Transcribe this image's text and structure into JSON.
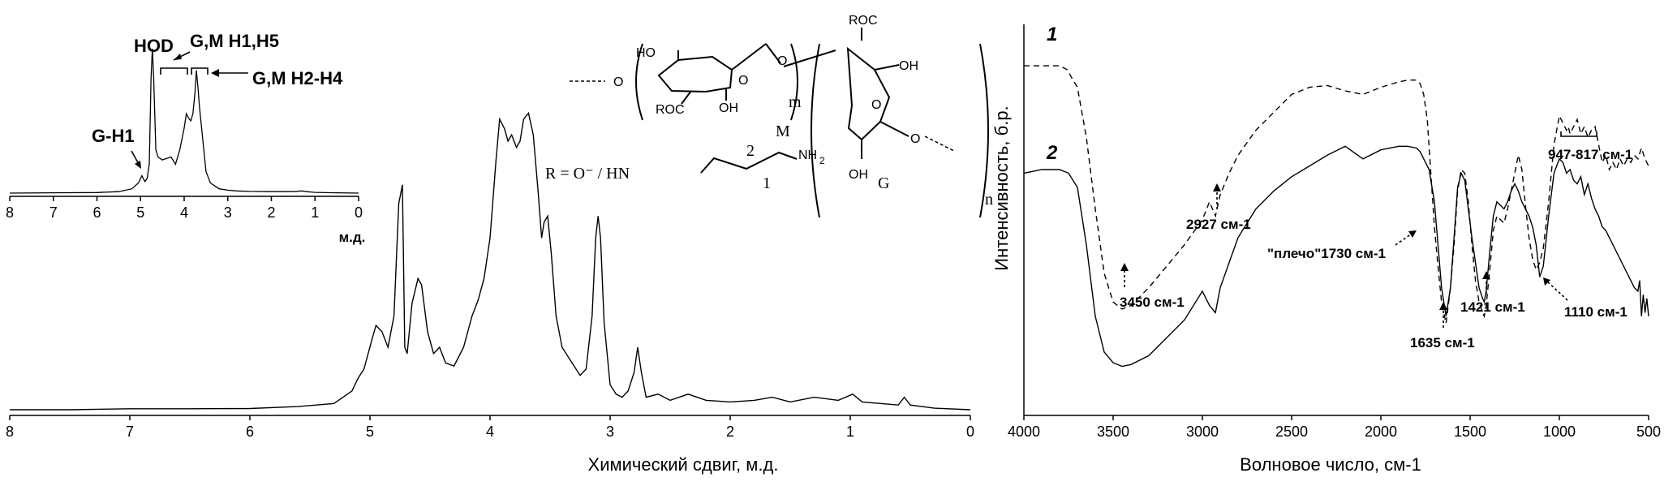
{
  "figure": {
    "chart_data": [
      {
        "type": "line",
        "id": "nmr_main",
        "xlabel": "Химический сдвиг, м.д.",
        "ylabel": "",
        "xlim": [
          8,
          0
        ],
        "x_reversed": true,
        "ticks": [
          "8",
          "7",
          "6",
          "5",
          "4",
          "3",
          "2",
          "1",
          "0"
        ],
        "series": [
          {
            "x": [
              8.0,
              7.5,
              7.0,
              6.5,
              6.0,
              5.6,
              5.3,
              5.15,
              5.1,
              5.05,
              4.98,
              4.95,
              4.9,
              4.85,
              4.8,
              4.76,
              4.73,
              4.71,
              4.69,
              4.65,
              4.6,
              4.57,
              4.52,
              4.47,
              4.42,
              4.37,
              4.3,
              4.22,
              4.15,
              4.1,
              4.05,
              4.0,
              3.95,
              3.92,
              3.88,
              3.85,
              3.82,
              3.78,
              3.75,
              3.72,
              3.68,
              3.64,
              3.6,
              3.57,
              3.55,
              3.52,
              3.49,
              3.45,
              3.4,
              3.35,
              3.3,
              3.25,
              3.2,
              3.15,
              3.12,
              3.1,
              3.08,
              3.05,
              3.0,
              2.95,
              2.9,
              2.85,
              2.8,
              2.77,
              2.74,
              2.7,
              2.6,
              2.5,
              2.35,
              2.2,
              2.0,
              1.8,
              1.65,
              1.5,
              1.3,
              1.1,
              0.98,
              0.9,
              0.75,
              0.6,
              0.55,
              0.5,
              0.3,
              0.0
            ],
            "y": [
              0.0,
              0.0,
              0.003,
              0.003,
              0.004,
              0.01,
              0.02,
              0.06,
              0.1,
              0.13,
              0.23,
              0.27,
              0.25,
              0.2,
              0.3,
              0.66,
              0.72,
              0.2,
              0.18,
              0.34,
              0.42,
              0.4,
              0.25,
              0.18,
              0.2,
              0.15,
              0.14,
              0.2,
              0.3,
              0.35,
              0.42,
              0.55,
              0.8,
              0.93,
              0.9,
              0.86,
              0.88,
              0.84,
              0.86,
              0.93,
              0.95,
              0.88,
              0.7,
              0.55,
              0.6,
              0.62,
              0.5,
              0.3,
              0.2,
              0.17,
              0.14,
              0.11,
              0.13,
              0.3,
              0.55,
              0.62,
              0.55,
              0.28,
              0.08,
              0.05,
              0.04,
              0.06,
              0.12,
              0.2,
              0.12,
              0.04,
              0.05,
              0.03,
              0.05,
              0.03,
              0.025,
              0.03,
              0.04,
              0.025,
              0.04,
              0.03,
              0.05,
              0.025,
              0.02,
              0.015,
              0.04,
              0.015,
              0.005,
              0.0
            ]
          }
        ]
      },
      {
        "type": "line",
        "id": "nmr_inset",
        "xlabel": "м.д.",
        "xlim": [
          8,
          0
        ],
        "x_reversed": true,
        "ticks": [
          "8",
          "7",
          "6",
          "5",
          "4",
          "3",
          "2",
          "1",
          "0"
        ],
        "series": [
          {
            "x": [
              8.0,
              7.0,
              6.0,
              5.5,
              5.2,
              5.05,
              4.97,
              4.9,
              4.85,
              4.8,
              4.76,
              4.73,
              4.7,
              4.65,
              4.6,
              4.5,
              4.4,
              4.3,
              4.2,
              4.1,
              4.0,
              3.95,
              3.9,
              3.85,
              3.8,
              3.75,
              3.72,
              3.68,
              3.65,
              3.6,
              3.55,
              3.5,
              3.4,
              3.3,
              3.2,
              3.0,
              2.8,
              2.5,
              2.0,
              1.5,
              1.3,
              1.2,
              1.0,
              0.5,
              0.0
            ],
            "y": [
              0.0,
              0.002,
              0.004,
              0.01,
              0.03,
              0.07,
              0.12,
              0.08,
              0.1,
              0.2,
              0.8,
              1.0,
              0.8,
              0.3,
              0.25,
              0.23,
              0.24,
              0.25,
              0.2,
              0.3,
              0.45,
              0.55,
              0.52,
              0.5,
              0.55,
              0.7,
              0.85,
              0.72,
              0.6,
              0.45,
              0.3,
              0.15,
              0.07,
              0.05,
              0.03,
              0.02,
              0.015,
              0.012,
              0.01,
              0.01,
              0.015,
              0.01,
              0.005,
              0.002,
              0.0
            ]
          }
        ],
        "annotations": [
          "HOD",
          "G,M H1,H5",
          "G,M H2-H4",
          "G-H1"
        ]
      },
      {
        "type": "line",
        "id": "ir",
        "xlabel": "Волновое число, см-1",
        "ylabel": "Интенсивность, б.р.",
        "xlim": [
          4000,
          500
        ],
        "x_reversed": true,
        "ticks": [
          "4000",
          "3500",
          "3000",
          "2500",
          "2000",
          "1500",
          "1000",
          "500"
        ],
        "series": [
          {
            "name": "1",
            "x": [
              4000,
              3900,
              3800,
              3760,
              3700,
              3650,
              3600,
              3550,
              3500,
              3450,
              3400,
              3300,
              3200,
              3100,
              3000,
              2960,
              2927,
              2900,
              2850,
              2800,
              2700,
              2600,
              2500,
              2400,
              2300,
              2200,
              2100,
              2000,
              1900,
              1850,
              1800,
              1780,
              1760,
              1740,
              1720,
              1700,
              1680,
              1660,
              1635,
              1610,
              1590,
              1570,
              1550,
              1530,
              1510,
              1490,
              1470,
              1450,
              1430,
              1421,
              1410,
              1390,
              1370,
              1350,
              1330,
              1310,
              1290,
              1270,
              1250,
              1230,
              1210,
              1190,
              1170,
              1150,
              1130,
              1110,
              1090,
              1060,
              1030,
              1000,
              980,
              960,
              950,
              940,
              920,
              900,
              880,
              860,
              840,
              820,
              800,
              780,
              760,
              740,
              720,
              700,
              680,
              660,
              640,
              620,
              600,
              580,
              560,
              540,
              520,
              500
            ],
            "y": [
              90,
              90,
              90,
              89,
              84,
              70,
              50,
              32,
              24,
              22,
              23,
              28,
              34,
              40,
              47,
              52,
              48,
              54,
              60,
              65,
              72,
              77,
              82,
              84,
              84.5,
              83,
              82,
              84,
              85.5,
              86,
              86,
              85,
              82,
              75,
              60,
              45,
              34,
              24,
              18,
              28,
              40,
              55,
              61,
              60,
              52,
              40,
              30,
              24,
              21,
              20,
              23,
              33,
              44,
              48,
              47,
              46,
              50,
              55,
              60,
              65,
              61,
              51,
              42,
              36,
              33,
              35,
              39,
              52,
              68,
              76,
              74,
              72,
              73,
              71,
              73,
              75,
              71,
              73,
              70,
              72,
              73,
              68,
              63,
              65,
              61,
              63,
              61,
              64,
              62,
              64,
              63,
              65,
              64,
              67,
              64,
              62
            ]
          },
          {
            "name": "2",
            "x": [
              4000,
              3900,
              3800,
              3750,
              3700,
              3650,
              3600,
              3550,
              3500,
              3450,
              3400,
              3300,
              3200,
              3100,
              3000,
              2960,
              2927,
              2900,
              2850,
              2800,
              2700,
              2600,
              2500,
              2400,
              2300,
              2200,
              2100,
              2000,
              1900,
              1850,
              1800,
              1780,
              1760,
              1740,
              1730,
              1720,
              1700,
              1680,
              1660,
              1635,
              1610,
              1590,
              1570,
              1550,
              1530,
              1510,
              1490,
              1470,
              1450,
              1430,
              1421,
              1410,
              1390,
              1370,
              1350,
              1330,
              1310,
              1290,
              1270,
              1250,
              1230,
              1210,
              1190,
              1170,
              1150,
              1130,
              1110,
              1090,
              1060,
              1030,
              1000,
              980,
              960,
              940,
              920,
              900,
              880,
              860,
              840,
              820,
              800,
              780,
              760,
              740,
              720,
              700,
              680,
              660,
              640,
              620,
              600,
              580,
              560,
              550,
              540,
              530,
              520,
              510,
              500
            ],
            "y": [
              60,
              61,
              61,
              60,
              56,
              40,
              20,
              10,
              7,
              6,
              6.5,
              9,
              14,
              19,
              27,
              23,
              21,
              28,
              35,
              42,
              50,
              55,
              59,
              62,
              65,
              67.5,
              64,
              66.5,
              67.5,
              67.5,
              67,
              66,
              64,
              62,
              61,
              58,
              52,
              40,
              28,
              20,
              28,
              42,
              56,
              60,
              58,
              50,
              42,
              35,
              28,
              25,
              24,
              27,
              38,
              48,
              52,
              51,
              50,
              52,
              55,
              57,
              55,
              52,
              50,
              48,
              45,
              40,
              31,
              34,
              48,
              60,
              64,
              63,
              60,
              61,
              58,
              57,
              59,
              54,
              57,
              53,
              50,
              48,
              45,
              44,
              42,
              40,
              38,
              36,
              34,
              32,
              30,
              28,
              27,
              30,
              20,
              26,
              21,
              25,
              20
            ]
          }
        ],
        "annotations": [
          "3450 см-1",
          "2927 см-1",
          "\"плечо\"1730 см-1",
          "1635 см-1",
          "1421 см-1",
          "1110 см-1",
          "947-817 см-1"
        ]
      }
    ],
    "structure": {
      "substituent": "R = O⁻ / HN",
      "label_2": "2",
      "label_1": "1",
      "label_m_amine": "M",
      "nh2": "NH",
      "nh2_sub": "2",
      "roc1": "ROC",
      "roc2": "ROC",
      "ho": "HO",
      "oh1": "OH",
      "oh2": "OH",
      "oh3": "OH",
      "o_ring1": "O",
      "o_ring2": "O",
      "o_link1": "O",
      "o_link2": "O",
      "o_link3": "O",
      "sub_m": "m",
      "sub_n": "n",
      "label_G": "G"
    }
  }
}
